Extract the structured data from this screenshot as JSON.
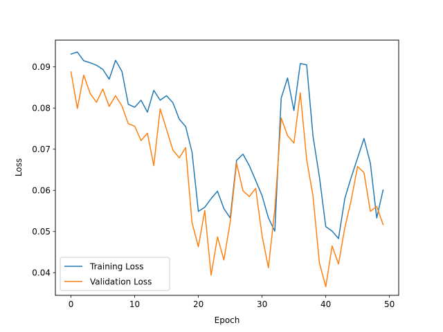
{
  "chart_data": {
    "type": "line",
    "title": "",
    "xlabel": "Epoch",
    "ylabel": "Loss",
    "xlim": [
      -2.45,
      51.45
    ],
    "ylim": [
      0.0345,
      0.0965
    ],
    "xticks": [
      0,
      10,
      20,
      30,
      40,
      50
    ],
    "yticks": [
      0.04,
      0.05,
      0.06,
      0.07,
      0.08,
      0.09
    ],
    "grid": false,
    "legend_position": "lower-left",
    "x": [
      0,
      1,
      2,
      3,
      4,
      5,
      6,
      7,
      8,
      9,
      10,
      11,
      12,
      13,
      14,
      15,
      16,
      17,
      18,
      19,
      20,
      21,
      22,
      23,
      24,
      25,
      26,
      27,
      28,
      29,
      30,
      31,
      32,
      33,
      34,
      35,
      36,
      37,
      38,
      39,
      40,
      41,
      42,
      43,
      44,
      45,
      46,
      47,
      48,
      49
    ],
    "series": [
      {
        "name": "Training Loss",
        "color": "#1f77b4",
        "values": [
          0.0931,
          0.0936,
          0.0915,
          0.091,
          0.0904,
          0.0894,
          0.087,
          0.0916,
          0.0889,
          0.0809,
          0.0802,
          0.0819,
          0.079,
          0.0843,
          0.0819,
          0.083,
          0.0813,
          0.0773,
          0.0755,
          0.0693,
          0.0549,
          0.0559,
          0.058,
          0.0598,
          0.0556,
          0.0533,
          0.0673,
          0.0688,
          0.066,
          0.0624,
          0.0587,
          0.0533,
          0.0501,
          0.0824,
          0.0873,
          0.0794,
          0.0908,
          0.0905,
          0.0731,
          0.0633,
          0.0512,
          0.0501,
          0.0483,
          0.0581,
          0.0632,
          0.0679,
          0.0726,
          0.0666,
          0.0533,
          0.0601
        ]
      },
      {
        "name": "Validation Loss",
        "color": "#ff7f0e",
        "values": [
          0.0888,
          0.0799,
          0.088,
          0.0836,
          0.0814,
          0.0846,
          0.0804,
          0.083,
          0.0805,
          0.0762,
          0.0756,
          0.0721,
          0.0739,
          0.066,
          0.0798,
          0.0748,
          0.0698,
          0.0679,
          0.0704,
          0.0522,
          0.0463,
          0.0551,
          0.0394,
          0.0487,
          0.0431,
          0.0523,
          0.0666,
          0.0599,
          0.0585,
          0.0605,
          0.049,
          0.0412,
          0.0554,
          0.0776,
          0.0733,
          0.0715,
          0.0837,
          0.0675,
          0.0586,
          0.0424,
          0.0366,
          0.0465,
          0.0421,
          0.051,
          0.0577,
          0.0658,
          0.0643,
          0.0549,
          0.0561,
          0.0517
        ]
      }
    ]
  }
}
